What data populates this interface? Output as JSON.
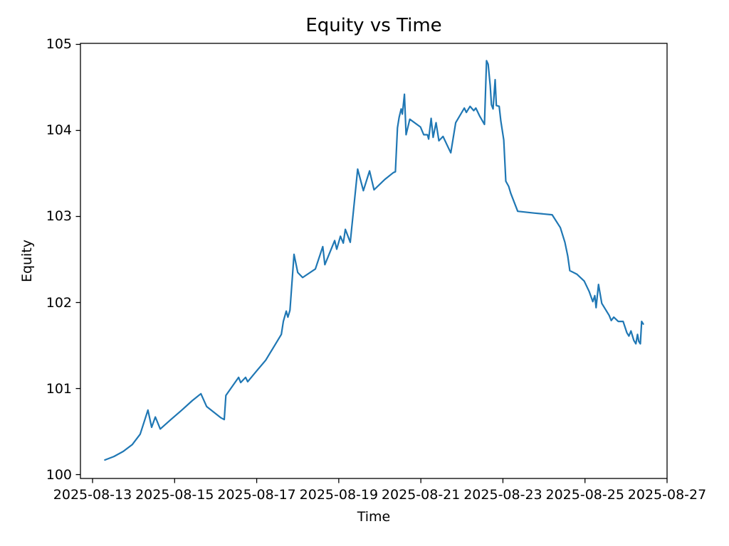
{
  "figure": {
    "title": "Equity vs Time",
    "x_axis_label": "Time",
    "y_axis_label": "Equity"
  },
  "chart_data": {
    "type": "line",
    "title": "Equity vs Time",
    "xlabel": "Time",
    "ylabel": "Equity",
    "legend_position": "none",
    "grid": false,
    "line_color": "#1f77b4",
    "background_color": "#ffffff",
    "x_tick_labels": [
      "2025-08-13",
      "2025-08-15",
      "2025-08-17",
      "2025-08-19",
      "2025-08-21",
      "2025-08-23",
      "2025-08-25",
      "2025-08-27"
    ],
    "x_tick_days": [
      0,
      2,
      4,
      6,
      8,
      10,
      12,
      14
    ],
    "y_ticks": [
      100,
      101,
      102,
      103,
      104,
      105
    ],
    "x_unit": "days after 2025-08-13 00:00",
    "xlim_days": [
      -0.295,
      14.0
    ],
    "ylim": [
      99.955,
      105.012
    ],
    "series": [
      {
        "name": "Equity",
        "x_days": [
          0.3,
          0.52,
          0.75,
          0.97,
          1.16,
          1.35,
          1.44,
          1.53,
          1.65,
          1.91,
          2.2,
          2.43,
          2.64,
          2.78,
          3.13,
          3.21,
          3.25,
          3.56,
          3.61,
          3.73,
          3.78,
          3.99,
          4.22,
          4.6,
          4.65,
          4.72,
          4.76,
          4.81,
          4.91,
          5.0,
          5.12,
          5.43,
          5.61,
          5.66,
          5.9,
          5.95,
          6.04,
          6.11,
          6.16,
          6.28,
          6.46,
          6.6,
          6.75,
          6.86,
          7.12,
          7.33,
          7.38,
          7.43,
          7.47,
          7.52,
          7.55,
          7.6,
          7.64,
          7.73,
          7.99,
          8.07,
          8.16,
          8.19,
          8.25,
          8.3,
          8.37,
          8.44,
          8.54,
          8.65,
          8.73,
          8.85,
          9.06,
          9.11,
          9.2,
          9.29,
          9.34,
          9.43,
          9.55,
          9.6,
          9.64,
          9.69,
          9.72,
          9.76,
          9.81,
          9.84,
          9.91,
          9.95,
          10.02,
          10.07,
          10.14,
          10.19,
          10.36,
          10.76,
          11.2,
          11.4,
          11.51,
          11.58,
          11.63,
          11.8,
          11.98,
          12.1,
          12.19,
          12.24,
          12.27,
          12.33,
          12.41,
          12.59,
          12.64,
          12.7,
          12.81,
          12.93,
          13.02,
          13.07,
          13.12,
          13.19,
          13.24,
          13.28,
          13.31,
          13.35,
          13.38,
          13.42
        ],
        "y": [
          100.17,
          100.21,
          100.27,
          100.35,
          100.47,
          100.75,
          100.55,
          100.67,
          100.53,
          100.64,
          100.76,
          100.86,
          100.94,
          100.79,
          100.66,
          100.64,
          100.92,
          101.13,
          101.07,
          101.13,
          101.08,
          101.2,
          101.33,
          101.63,
          101.78,
          101.9,
          101.83,
          101.91,
          102.56,
          102.35,
          102.29,
          102.39,
          102.65,
          102.44,
          102.72,
          102.62,
          102.77,
          102.69,
          102.85,
          102.7,
          103.55,
          103.3,
          103.53,
          103.31,
          103.43,
          103.51,
          103.52,
          104.03,
          104.15,
          104.25,
          104.19,
          104.42,
          103.95,
          104.13,
          104.04,
          103.95,
          103.95,
          103.9,
          104.14,
          103.92,
          104.09,
          103.88,
          103.93,
          103.82,
          103.74,
          104.09,
          104.26,
          104.21,
          104.28,
          104.23,
          104.26,
          104.17,
          104.07,
          104.81,
          104.77,
          104.52,
          104.3,
          104.25,
          104.59,
          104.29,
          104.28,
          104.11,
          103.89,
          103.41,
          103.35,
          103.27,
          103.06,
          103.04,
          103.02,
          102.87,
          102.7,
          102.54,
          102.37,
          102.33,
          102.25,
          102.13,
          102.01,
          102.08,
          101.94,
          102.21,
          101.99,
          101.85,
          101.79,
          101.83,
          101.78,
          101.78,
          101.65,
          101.61,
          101.67,
          101.56,
          101.52,
          101.63,
          101.55,
          101.52,
          101.78,
          101.75
        ]
      }
    ]
  }
}
